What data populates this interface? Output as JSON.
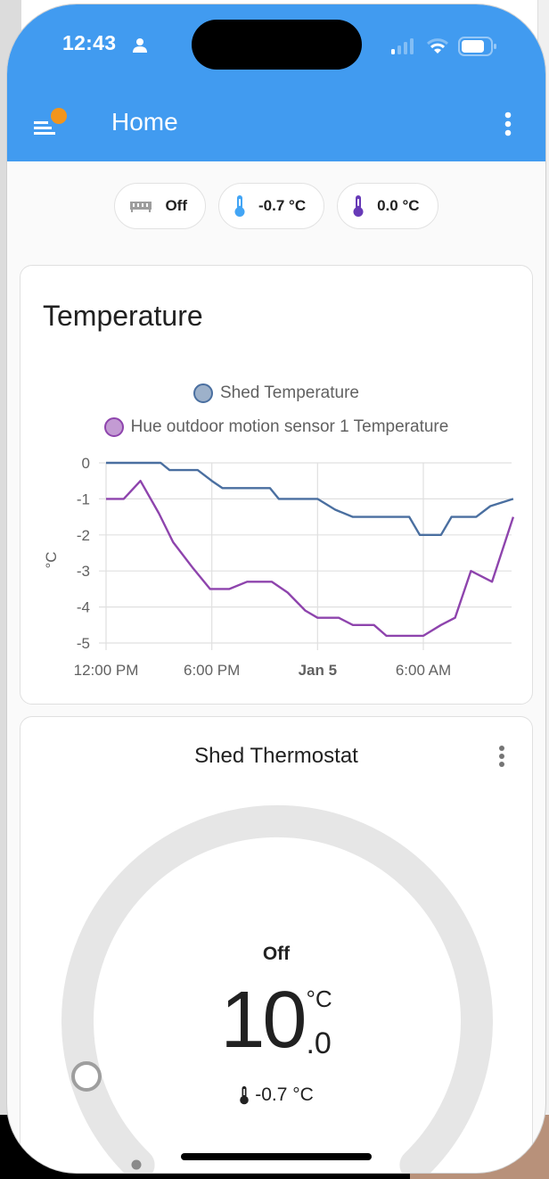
{
  "status_bar": {
    "time": "12:43",
    "icons": [
      "person-icon",
      "signal-icon",
      "wifi-icon",
      "battery-icon"
    ]
  },
  "app_bar": {
    "title": "Home",
    "menu_icon": "menu-icon",
    "notification_badge_color": "#f2951c",
    "overflow_icon": "more-vert-icon",
    "background": "#419bf0"
  },
  "chips": [
    {
      "icon": "radiator-icon",
      "label": "Off",
      "icon_color": "#9e9e9e"
    },
    {
      "icon": "thermometer-icon",
      "label": "-0.7 °C",
      "icon_color": "#42a5f5"
    },
    {
      "icon": "thermometer-icon",
      "label": "0.0 °C",
      "icon_color": "#673ab7"
    }
  ],
  "temperature_card": {
    "title": "Temperature",
    "legend": [
      {
        "label": "Shed Temperature",
        "color": "#4a6fa0",
        "fill": "#9db1ca"
      },
      {
        "label": "Hue outdoor motion sensor 1 Temperature",
        "color": "#8e44ad",
        "fill": "#c39bd3"
      }
    ]
  },
  "chart_data": {
    "type": "line",
    "title": "Temperature",
    "xlabel": "",
    "ylabel": "°C",
    "ylim": [
      -5,
      0
    ],
    "yticks": [
      "0",
      "-1",
      "-2",
      "-3",
      "-4",
      "-5"
    ],
    "xticks": [
      "12:00 PM",
      "6:00 PM",
      "Jan 5",
      "6:00 AM"
    ],
    "bold_xticks": [
      "Jan 5"
    ],
    "grid": true,
    "legend_position": "top",
    "x_hours_from_noon": [
      0,
      1,
      2,
      3,
      3.2,
      4,
      5,
      6,
      6.5,
      7,
      8,
      9,
      9.5,
      10,
      11,
      12,
      12.5,
      13,
      14,
      15,
      16,
      17,
      17.5,
      18,
      18.5,
      19,
      20,
      20.5,
      21,
      22,
      23.1
    ],
    "series": [
      {
        "name": "Shed Temperature",
        "color": "#4a6fa0",
        "points": [
          [
            0,
            0
          ],
          [
            3.1,
            0
          ],
          [
            3.6,
            -0.2
          ],
          [
            5.2,
            -0.2
          ],
          [
            6.0,
            -0.5
          ],
          [
            6.6,
            -0.7
          ],
          [
            9.3,
            -0.7
          ],
          [
            9.8,
            -1.0
          ],
          [
            12.0,
            -1.0
          ],
          [
            13.0,
            -1.3
          ],
          [
            14.0,
            -1.5
          ],
          [
            17.2,
            -1.5
          ],
          [
            17.8,
            -2.0
          ],
          [
            19.0,
            -2.0
          ],
          [
            19.6,
            -1.5
          ],
          [
            21.0,
            -1.5
          ],
          [
            21.8,
            -1.2
          ],
          [
            23.1,
            -1.0
          ]
        ]
      },
      {
        "name": "Hue outdoor motion sensor 1 Temperature",
        "color": "#8e44ad",
        "points": [
          [
            0,
            -1.0
          ],
          [
            1.0,
            -1.0
          ],
          [
            1.95,
            -0.5
          ],
          [
            3.0,
            -1.4
          ],
          [
            3.8,
            -2.2
          ],
          [
            4.9,
            -2.9
          ],
          [
            5.9,
            -3.5
          ],
          [
            7.0,
            -3.5
          ],
          [
            8.0,
            -3.3
          ],
          [
            9.4,
            -3.3
          ],
          [
            10.3,
            -3.6
          ],
          [
            11.3,
            -4.1
          ],
          [
            12.0,
            -4.3
          ],
          [
            13.2,
            -4.3
          ],
          [
            14.0,
            -4.5
          ],
          [
            15.2,
            -4.5
          ],
          [
            15.9,
            -4.8
          ],
          [
            18.0,
            -4.8
          ],
          [
            19.0,
            -4.5
          ],
          [
            19.8,
            -4.3
          ],
          [
            20.7,
            -3.0
          ],
          [
            21.9,
            -3.3
          ],
          [
            23.1,
            -1.5
          ]
        ]
      }
    ]
  },
  "thermostat_card": {
    "title": "Shed Thermostat",
    "mode": "Off",
    "target_integer": "10",
    "target_decimal": ".0",
    "unit": "°C",
    "current_temperature": "-0.7 °C",
    "dial_track_color": "#e6e6e6",
    "handle_color": "#9e9e9e"
  }
}
